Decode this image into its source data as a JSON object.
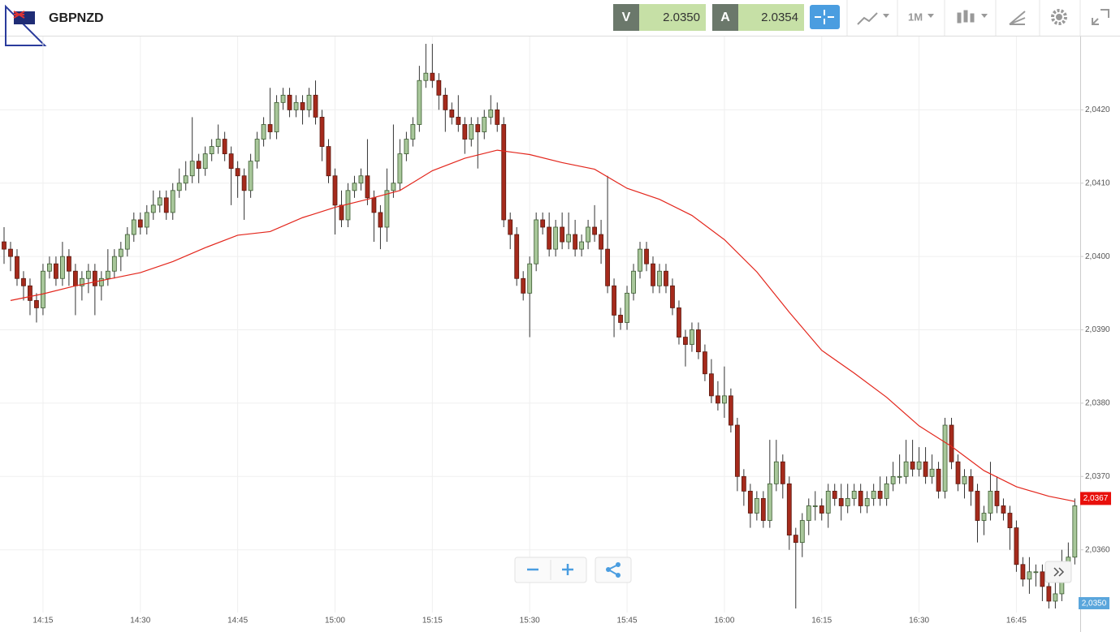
{
  "header": {
    "symbol": "GBPNZD",
    "bid_tag": "V",
    "bid": "2.0350",
    "ask_tag": "A",
    "ask": "2.0354",
    "timeframe": "1M"
  },
  "chart_data": {
    "type": "candlestick",
    "x": [
      "14:09",
      "14:10",
      "14:11",
      "14:12",
      "14:13",
      "14:14",
      "14:15",
      "14:16",
      "14:17",
      "14:18",
      "14:19",
      "14:20",
      "14:21",
      "14:22",
      "14:23",
      "14:24",
      "14:25",
      "14:26",
      "14:27",
      "14:28",
      "14:29",
      "14:30",
      "14:31",
      "14:32",
      "14:33",
      "14:34",
      "14:35",
      "14:36",
      "14:37",
      "14:38",
      "14:39",
      "14:40",
      "14:41",
      "14:42",
      "14:43",
      "14:44",
      "14:45",
      "14:46",
      "14:47",
      "14:48",
      "14:49",
      "14:50",
      "14:51",
      "14:52",
      "14:53",
      "14:54",
      "14:55",
      "14:56",
      "14:57",
      "14:58",
      "14:59",
      "15:00",
      "15:01",
      "15:02",
      "15:03",
      "15:04",
      "15:05",
      "15:06",
      "15:07",
      "15:08",
      "15:09",
      "15:10",
      "15:11",
      "15:12",
      "15:13",
      "15:14",
      "15:15",
      "15:16",
      "15:17",
      "15:18",
      "15:19",
      "15:20",
      "15:21",
      "15:22",
      "15:23",
      "15:24",
      "15:25",
      "15:26",
      "15:27",
      "15:28",
      "15:29",
      "15:30",
      "15:31",
      "15:32",
      "15:33",
      "15:34",
      "15:35",
      "15:36",
      "15:37",
      "15:38",
      "15:39",
      "15:40",
      "15:41",
      "15:42",
      "15:43",
      "15:44",
      "15:45",
      "15:46",
      "15:47",
      "15:48",
      "15:49",
      "15:50",
      "15:51",
      "15:52",
      "15:53",
      "15:54",
      "15:55",
      "15:56",
      "15:57",
      "15:58",
      "15:59",
      "16:00",
      "16:01",
      "16:02",
      "16:03",
      "16:04",
      "16:05",
      "16:06",
      "16:07",
      "16:08",
      "16:09",
      "16:10",
      "16:11",
      "16:12",
      "16:13",
      "16:14",
      "16:15",
      "16:16",
      "16:17",
      "16:18",
      "16:19",
      "16:20",
      "16:21",
      "16:22",
      "16:23",
      "16:24",
      "16:25",
      "16:26",
      "16:27",
      "16:28",
      "16:29",
      "16:30",
      "16:31",
      "16:32",
      "16:33",
      "16:34",
      "16:35",
      "16:36",
      "16:37",
      "16:38",
      "16:39",
      "16:40",
      "16:41",
      "16:42",
      "16:43",
      "16:44",
      "16:45",
      "16:46",
      "16:47",
      "16:48",
      "16:49",
      "16:50",
      "16:51",
      "16:52",
      "16:53",
      "16:54"
    ],
    "candles": [
      [
        2.0402,
        2.0404,
        2.0399,
        2.0401
      ],
      [
        2.0401,
        2.0402,
        2.0398,
        2.04
      ],
      [
        2.04,
        2.0401,
        2.0396,
        2.0397
      ],
      [
        2.0397,
        2.0398,
        2.0394,
        2.0396
      ],
      [
        2.0396,
        2.0397,
        2.0392,
        2.0394
      ],
      [
        2.0394,
        2.0395,
        2.0391,
        2.0393
      ],
      [
        2.0393,
        2.0399,
        2.0392,
        2.0398
      ],
      [
        2.0398,
        2.04,
        2.0397,
        2.0399
      ],
      [
        2.0399,
        2.04,
        2.0396,
        2.0397
      ],
      [
        2.0397,
        2.0402,
        2.0396,
        2.04
      ],
      [
        2.04,
        2.0401,
        2.0396,
        2.0398
      ],
      [
        2.0398,
        2.0399,
        2.0392,
        2.0396
      ],
      [
        2.0396,
        2.0398,
        2.0394,
        2.0397
      ],
      [
        2.0397,
        2.0399,
        2.0395,
        2.0398
      ],
      [
        2.0398,
        2.0399,
        2.0392,
        2.0396
      ],
      [
        2.0396,
        2.0398,
        2.0394,
        2.0397
      ],
      [
        2.0397,
        2.0401,
        2.0396,
        2.0398
      ],
      [
        2.0398,
        2.0401,
        2.0397,
        2.04
      ],
      [
        2.04,
        2.0402,
        2.0398,
        2.0401
      ],
      [
        2.0401,
        2.0404,
        2.04,
        2.0403
      ],
      [
        2.0403,
        2.0406,
        2.0402,
        2.0405
      ],
      [
        2.0405,
        2.0406,
        2.0403,
        2.0404
      ],
      [
        2.0404,
        2.0407,
        2.0403,
        2.0406
      ],
      [
        2.0406,
        2.0409,
        2.0405,
        2.0407
      ],
      [
        2.0407,
        2.0409,
        2.0406,
        2.0408
      ],
      [
        2.0408,
        2.0409,
        2.0405,
        2.0406
      ],
      [
        2.0406,
        2.041,
        2.0405,
        2.0409
      ],
      [
        2.0409,
        2.0412,
        2.0408,
        2.041
      ],
      [
        2.041,
        2.0413,
        2.0409,
        2.0411
      ],
      [
        2.0411,
        2.0419,
        2.041,
        2.0413
      ],
      [
        2.0413,
        2.0414,
        2.041,
        2.0412
      ],
      [
        2.0412,
        2.0415,
        2.0411,
        2.0414
      ],
      [
        2.0414,
        2.0416,
        2.0413,
        2.0415
      ],
      [
        2.0415,
        2.0418,
        2.0414,
        2.0416
      ],
      [
        2.0416,
        2.0417,
        2.0413,
        2.0414
      ],
      [
        2.0414,
        2.0415,
        2.0407,
        2.0412
      ],
      [
        2.0412,
        2.0413,
        2.0408,
        2.0411
      ],
      [
        2.0411,
        2.0412,
        2.0405,
        2.0409
      ],
      [
        2.0409,
        2.0414,
        2.0408,
        2.0413
      ],
      [
        2.0413,
        2.0417,
        2.0412,
        2.0416
      ],
      [
        2.0416,
        2.0419,
        2.0415,
        2.0418
      ],
      [
        2.0418,
        2.0423,
        2.0416,
        2.0417
      ],
      [
        2.0417,
        2.0422,
        2.0416,
        2.0421
      ],
      [
        2.0421,
        2.0423,
        2.042,
        2.0422
      ],
      [
        2.0422,
        2.0423,
        2.0419,
        2.042
      ],
      [
        2.042,
        2.0422,
        2.0419,
        2.0421
      ],
      [
        2.0421,
        2.0422,
        2.0418,
        2.042
      ],
      [
        2.042,
        2.0423,
        2.0419,
        2.0422
      ],
      [
        2.0422,
        2.0424,
        2.0418,
        2.0419
      ],
      [
        2.0419,
        2.042,
        2.0413,
        2.0415
      ],
      [
        2.0415,
        2.0416,
        2.041,
        2.0411
      ],
      [
        2.0411,
        2.0412,
        2.0403,
        2.0407
      ],
      [
        2.0407,
        2.0409,
        2.0404,
        2.0405
      ],
      [
        2.0405,
        2.041,
        2.0404,
        2.0409
      ],
      [
        2.0409,
        2.0411,
        2.0408,
        2.041
      ],
      [
        2.041,
        2.0412,
        2.0409,
        2.0411
      ],
      [
        2.0411,
        2.0416,
        2.0407,
        2.0408
      ],
      [
        2.0408,
        2.0409,
        2.0402,
        2.0406
      ],
      [
        2.0406,
        2.0407,
        2.0401,
        2.0404
      ],
      [
        2.0404,
        2.0412,
        2.0402,
        2.0409
      ],
      [
        2.0409,
        2.0418,
        2.0408,
        2.041
      ],
      [
        2.041,
        2.0416,
        2.0409,
        2.0414
      ],
      [
        2.0414,
        2.0417,
        2.0413,
        2.0416
      ],
      [
        2.0416,
        2.0419,
        2.0415,
        2.0418
      ],
      [
        2.0418,
        2.0426,
        2.0417,
        2.0424
      ],
      [
        2.0424,
        2.0429,
        2.0423,
        2.0425
      ],
      [
        2.0425,
        2.0429,
        2.0423,
        2.0424
      ],
      [
        2.0424,
        2.0425,
        2.042,
        2.0422
      ],
      [
        2.0422,
        2.0423,
        2.0417,
        2.042
      ],
      [
        2.042,
        2.0421,
        2.0418,
        2.0419
      ],
      [
        2.0419,
        2.0422,
        2.0417,
        2.0418
      ],
      [
        2.0418,
        2.0419,
        2.0414,
        2.0416
      ],
      [
        2.0416,
        2.0419,
        2.0415,
        2.0418
      ],
      [
        2.0418,
        2.0419,
        2.0412,
        2.0417
      ],
      [
        2.0417,
        2.042,
        2.0416,
        2.0419
      ],
      [
        2.0419,
        2.0422,
        2.0418,
        2.042
      ],
      [
        2.042,
        2.0421,
        2.0417,
        2.0418
      ],
      [
        2.0418,
        2.0419,
        2.0404,
        2.0405
      ],
      [
        2.0405,
        2.0406,
        2.0401,
        2.0403
      ],
      [
        2.0403,
        2.0404,
        2.0396,
        2.0397
      ],
      [
        2.0397,
        2.0398,
        2.0394,
        2.0395
      ],
      [
        2.0395,
        2.04,
        2.0389,
        2.0399
      ],
      [
        2.0399,
        2.0406,
        2.0398,
        2.0405
      ],
      [
        2.0405,
        2.0406,
        2.0403,
        2.0404
      ],
      [
        2.0404,
        2.0406,
        2.04,
        2.0401
      ],
      [
        2.0401,
        2.0405,
        2.04,
        2.0404
      ],
      [
        2.0404,
        2.0406,
        2.0401,
        2.0402
      ],
      [
        2.0402,
        2.0406,
        2.0401,
        2.0403
      ],
      [
        2.0403,
        2.0405,
        2.04,
        2.0401
      ],
      [
        2.0401,
        2.0403,
        2.04,
        2.0402
      ],
      [
        2.0402,
        2.0405,
        2.0401,
        2.0404
      ],
      [
        2.0404,
        2.0407,
        2.0402,
        2.0403
      ],
      [
        2.0403,
        2.0405,
        2.0399,
        2.0401
      ],
      [
        2.0401,
        2.0411,
        2.0395,
        2.0396
      ],
      [
        2.0396,
        2.0397,
        2.0389,
        2.0392
      ],
      [
        2.0392,
        2.0393,
        2.039,
        2.0391
      ],
      [
        2.0391,
        2.0396,
        2.039,
        2.0395
      ],
      [
        2.0395,
        2.0399,
        2.0394,
        2.0398
      ],
      [
        2.0398,
        2.0402,
        2.0397,
        2.0401
      ],
      [
        2.0401,
        2.0402,
        2.0398,
        2.0399
      ],
      [
        2.0399,
        2.04,
        2.0395,
        2.0396
      ],
      [
        2.0396,
        2.0399,
        2.0395,
        2.0398
      ],
      [
        2.0398,
        2.0399,
        2.0395,
        2.0396
      ],
      [
        2.0396,
        2.0397,
        2.0392,
        2.0393
      ],
      [
        2.0393,
        2.0394,
        2.0388,
        2.0389
      ],
      [
        2.0389,
        2.039,
        2.0385,
        2.0388
      ],
      [
        2.0388,
        2.0391,
        2.0387,
        2.039
      ],
      [
        2.039,
        2.0391,
        2.0386,
        2.0387
      ],
      [
        2.0387,
        2.0388,
        2.0383,
        2.0384
      ],
      [
        2.0384,
        2.0386,
        2.038,
        2.0381
      ],
      [
        2.0381,
        2.0383,
        2.0379,
        2.038
      ],
      [
        2.038,
        2.0385,
        2.0378,
        2.0381
      ],
      [
        2.0381,
        2.0382,
        2.0376,
        2.0377
      ],
      [
        2.0377,
        2.0378,
        2.0368,
        2.037
      ],
      [
        2.037,
        2.0371,
        2.0366,
        2.0368
      ],
      [
        2.0368,
        2.0369,
        2.0363,
        2.0365
      ],
      [
        2.0365,
        2.0368,
        2.0364,
        2.0367
      ],
      [
        2.0367,
        2.0368,
        2.0363,
        2.0364
      ],
      [
        2.0364,
        2.0375,
        2.0363,
        2.0369
      ],
      [
        2.0369,
        2.0375,
        2.0368,
        2.0372
      ],
      [
        2.0372,
        2.0373,
        2.0367,
        2.0369
      ],
      [
        2.0369,
        2.037,
        2.036,
        2.0362
      ],
      [
        2.0362,
        2.0363,
        2.0352,
        2.0361
      ],
      [
        2.0361,
        2.0365,
        2.0359,
        2.0364
      ],
      [
        2.0364,
        2.0367,
        2.0362,
        2.0366
      ],
      [
        2.0366,
        2.0368,
        2.0364,
        2.0366
      ],
      [
        2.0366,
        2.0367,
        2.0364,
        2.0365
      ],
      [
        2.0365,
        2.0369,
        2.0363,
        2.0368
      ],
      [
        2.0368,
        2.0369,
        2.0366,
        2.0367
      ],
      [
        2.0367,
        2.0369,
        2.0364,
        2.0366
      ],
      [
        2.0366,
        2.0369,
        2.0365,
        2.0367
      ],
      [
        2.0367,
        2.0369,
        2.0366,
        2.0368
      ],
      [
        2.0368,
        2.0369,
        2.0365,
        2.0366
      ],
      [
        2.0366,
        2.0368,
        2.0365,
        2.0367
      ],
      [
        2.0367,
        2.0369,
        2.0366,
        2.0368
      ],
      [
        2.0368,
        2.037,
        2.0366,
        2.0367
      ],
      [
        2.0367,
        2.037,
        2.0366,
        2.0369
      ],
      [
        2.0369,
        2.0372,
        2.0368,
        2.037
      ],
      [
        2.037,
        2.0373,
        2.0369,
        2.037
      ],
      [
        2.037,
        2.0375,
        2.0369,
        2.0372
      ],
      [
        2.0372,
        2.0375,
        2.037,
        2.0371
      ],
      [
        2.0371,
        2.0374,
        2.037,
        2.0372
      ],
      [
        2.0372,
        2.0374,
        2.0369,
        2.037
      ],
      [
        2.037,
        2.0373,
        2.0369,
        2.0371
      ],
      [
        2.0371,
        2.0372,
        2.0367,
        2.0368
      ],
      [
        2.0368,
        2.0378,
        2.0367,
        2.0377
      ],
      [
        2.0377,
        2.0378,
        2.0371,
        2.0372
      ],
      [
        2.0372,
        2.0373,
        2.0368,
        2.0369
      ],
      [
        2.0369,
        2.0371,
        2.0367,
        2.037
      ],
      [
        2.037,
        2.0371,
        2.0366,
        2.0368
      ],
      [
        2.0368,
        2.0369,
        2.0361,
        2.0364
      ],
      [
        2.0364,
        2.0366,
        2.0362,
        2.0365
      ],
      [
        2.0365,
        2.0372,
        2.0364,
        2.0368
      ],
      [
        2.0368,
        2.037,
        2.0365,
        2.0366
      ],
      [
        2.0366,
        2.0367,
        2.0364,
        2.0365
      ],
      [
        2.0365,
        2.0366,
        2.036,
        2.0363
      ],
      [
        2.0363,
        2.0364,
        2.0357,
        2.0358
      ],
      [
        2.0358,
        2.0359,
        2.0355,
        2.0356
      ],
      [
        2.0356,
        2.0359,
        2.0354,
        2.0357
      ],
      [
        2.0357,
        2.0358,
        2.0355,
        2.0357
      ],
      [
        2.0357,
        2.0358,
        2.0353,
        2.0355
      ],
      [
        2.0355,
        2.0356,
        2.0352,
        2.0353
      ],
      [
        2.0353,
        2.0358,
        2.0352,
        2.0354
      ],
      [
        2.0354,
        2.036,
        2.0353,
        2.0357
      ],
      [
        2.0357,
        2.0361,
        2.0356,
        2.0359
      ],
      [
        2.0359,
        2.0367,
        2.0358,
        2.0366
      ]
    ],
    "up_color": "#a8c79a",
    "down_color": "#a52a1c",
    "moving_average": {
      "color": "#e3261c",
      "x": [
        "14:10",
        "14:15",
        "14:20",
        "14:25",
        "14:30",
        "14:35",
        "14:40",
        "14:45",
        "14:50",
        "14:55",
        "15:00",
        "15:05",
        "15:10",
        "15:15",
        "15:20",
        "15:25",
        "15:30",
        "15:35",
        "15:40",
        "15:45",
        "15:50",
        "15:55",
        "16:00",
        "16:05",
        "16:10",
        "16:15",
        "16:20",
        "16:25",
        "16:30",
        "16:35",
        "16:40",
        "16:45",
        "16:50",
        "16:54"
      ],
      "values": [
        2.0394,
        2.03949,
        2.0396,
        2.03969,
        2.03978,
        2.03993,
        2.04012,
        2.04029,
        2.04034,
        2.04053,
        2.04067,
        2.04078,
        2.0409,
        2.04117,
        2.04134,
        2.04145,
        2.04139,
        2.04128,
        2.04119,
        2.04093,
        2.04078,
        2.04056,
        2.04023,
        2.03979,
        2.03924,
        2.03872,
        2.03841,
        2.03808,
        2.03769,
        2.03741,
        2.03708,
        2.03686,
        2.03673,
        2.03666
      ]
    },
    "ylim": [
      2.0352,
      2.043
    ],
    "yticks": [
      {
        "value": 2.036,
        "label": "2,0360"
      },
      {
        "value": 2.037,
        "label": "2,0370"
      },
      {
        "value": 2.038,
        "label": "2,0380"
      },
      {
        "value": 2.039,
        "label": "2,0390"
      },
      {
        "value": 2.04,
        "label": "2,0400"
      },
      {
        "value": 2.041,
        "label": "2,0410"
      },
      {
        "value": 2.042,
        "label": "2,0420"
      }
    ],
    "xticks": [
      "14:15",
      "14:30",
      "14:45",
      "15:00",
      "15:15",
      "15:30",
      "15:45",
      "16:00",
      "16:15",
      "16:30",
      "16:45"
    ],
    "grid": true,
    "last_price": {
      "value": 2.0367,
      "label": "2,0367",
      "color": "#e8100c"
    },
    "bottom_price_label": "2,0350"
  }
}
